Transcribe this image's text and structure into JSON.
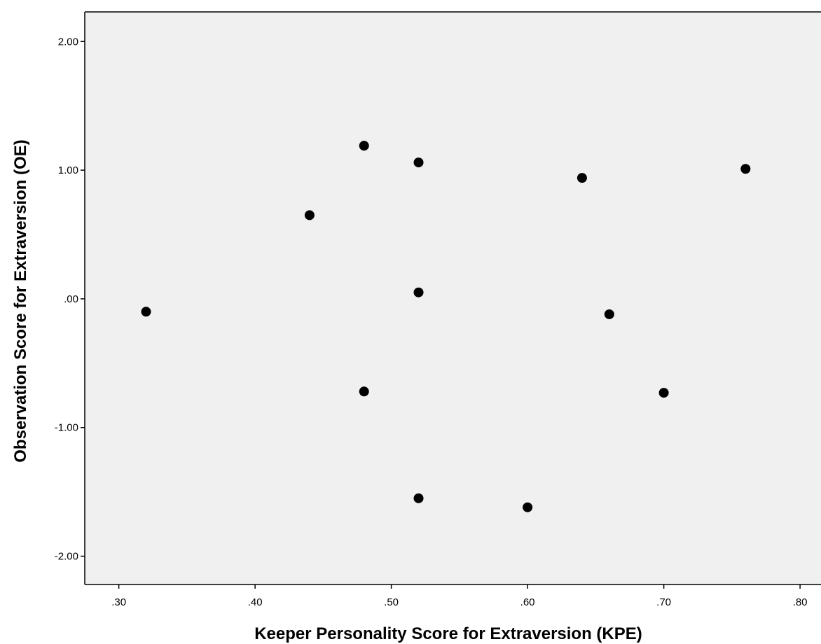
{
  "chart_data": {
    "type": "scatter",
    "title": "",
    "xlabel": "Keeper Personality Score for Extraversion (KPE)",
    "ylabel": "Observation Score for Extraversion (OE)",
    "xlim": [
      0.275,
      0.82
    ],
    "ylim": [
      -2.22,
      2.23
    ],
    "x_ticks": [
      {
        "value": 0.3,
        "label": ".30"
      },
      {
        "value": 0.4,
        "label": ".40"
      },
      {
        "value": 0.5,
        "label": ".50"
      },
      {
        "value": 0.6,
        "label": ".60"
      },
      {
        "value": 0.7,
        "label": ".70"
      },
      {
        "value": 0.8,
        "label": ".80"
      }
    ],
    "y_ticks": [
      {
        "value": 2.0,
        "label": "2.00"
      },
      {
        "value": 1.0,
        "label": "1.00"
      },
      {
        "value": 0.0,
        "label": ".00"
      },
      {
        "value": -1.0,
        "label": "-1.00"
      },
      {
        "value": -2.0,
        "label": "-2.00"
      }
    ],
    "grid": false,
    "plot_background": "#f0f0f0",
    "marker_color": "#000000",
    "points": [
      {
        "x": 0.32,
        "y": -0.1
      },
      {
        "x": 0.44,
        "y": 0.65
      },
      {
        "x": 0.48,
        "y": 1.19
      },
      {
        "x": 0.48,
        "y": -0.72
      },
      {
        "x": 0.52,
        "y": 1.06
      },
      {
        "x": 0.52,
        "y": 0.05
      },
      {
        "x": 0.52,
        "y": -1.55
      },
      {
        "x": 0.6,
        "y": -1.62
      },
      {
        "x": 0.64,
        "y": 0.94
      },
      {
        "x": 0.66,
        "y": -0.12
      },
      {
        "x": 0.7,
        "y": -0.73
      },
      {
        "x": 0.76,
        "y": 1.01
      }
    ]
  }
}
